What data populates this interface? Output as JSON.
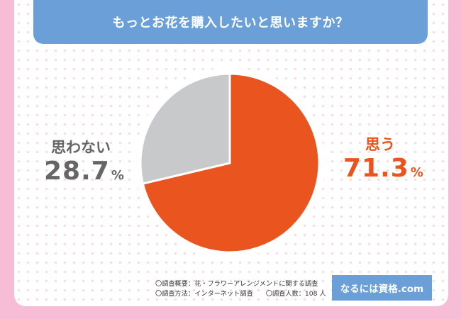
{
  "header": {
    "title": "もっとお花を購入したいと思いますか？"
  },
  "chart_data": {
    "type": "pie",
    "categories": [
      "思う",
      "思わない"
    ],
    "values": [
      71.3,
      28.7
    ],
    "unit": "%",
    "colors": [
      "#e9541f",
      "#c8c9cb"
    ],
    "title": "もっとお花を購入したいと思いますか？"
  },
  "labels": {
    "yes": {
      "name": "思う",
      "value": "71.3",
      "unit": "%"
    },
    "no": {
      "name": "思わない",
      "value": "28.7",
      "unit": "%"
    }
  },
  "notes": {
    "overview": "〇調査概要：花・フラワーアレンジメントに関する調査",
    "method": "〇調査方法：インターネット調査",
    "respondents": "〇調査人数：108 人"
  },
  "brand": {
    "label": "なるには資格.com"
  }
}
